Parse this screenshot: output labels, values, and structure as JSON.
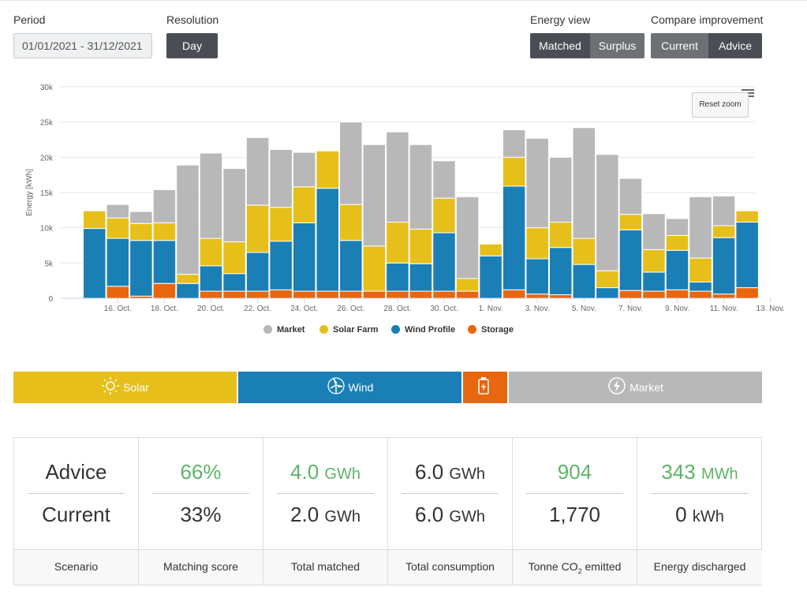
{
  "controls": {
    "period_label": "Period",
    "period_value": "01/01/2021 - 31/12/2021",
    "resolution_label": "Resolution",
    "resolution_value": "Day",
    "energy_view_label": "Energy view",
    "energy_view_options": [
      "Matched",
      "Surplus"
    ],
    "compare_label": "Compare improvement",
    "compare_options": [
      "Current",
      "Advice"
    ]
  },
  "chart": {
    "reset_zoom": "Reset zoom"
  },
  "chart_data": {
    "type": "bar",
    "stacked": true,
    "ylabel": "Energy [kWh]",
    "ylim": [
      0,
      30000
    ],
    "yticks": [
      "0",
      "5k",
      "10k",
      "15k",
      "20k",
      "25k",
      "30k"
    ],
    "xticks": [
      "16. Oct.",
      "18. Oct.",
      "20. Oct.",
      "22. Oct.",
      "24. Oct.",
      "26. Oct.",
      "28. Oct.",
      "30. Oct.",
      "1. Nov.",
      "3. Nov.",
      "5. Nov.",
      "7. Nov.",
      "9. Nov.",
      "11. Nov.",
      "13. Nov."
    ],
    "categories": [
      "15. Oct.",
      "16. Oct.",
      "17. Oct.",
      "18. Oct.",
      "19. Oct.",
      "20. Oct.",
      "21. Oct.",
      "22. Oct.",
      "23. Oct.",
      "24. Oct.",
      "25. Oct.",
      "26. Oct.",
      "27. Oct.",
      "28. Oct.",
      "29. Oct.",
      "30. Oct.",
      "31. Oct.",
      "1. Nov.",
      "2. Nov.",
      "3. Nov.",
      "4. Nov.",
      "5. Nov.",
      "6. Nov.",
      "7. Nov.",
      "8. Nov.",
      "9. Nov.",
      "10. Nov.",
      "11. Nov.",
      "12. Nov."
    ],
    "series": [
      {
        "name": "Storage",
        "color": "#e8660e",
        "values": [
          0,
          1700,
          300,
          2100,
          0,
          1000,
          1000,
          1000,
          1200,
          1000,
          1000,
          1000,
          1000,
          1000,
          1000,
          1000,
          1000,
          0,
          1200,
          600,
          500,
          0,
          0,
          1100,
          1000,
          1200,
          1000,
          600,
          1500
        ]
      },
      {
        "name": "Wind Profile",
        "color": "#1a7fb5",
        "values": [
          9900,
          6800,
          7900,
          6100,
          2100,
          3600,
          2500,
          5500,
          6900,
          9700,
          14600,
          7200,
          0,
          4000,
          3900,
          8300,
          0,
          6000,
          14700,
          5000,
          6700,
          4800,
          1500,
          8600,
          2700,
          5600,
          1300,
          8000,
          9300
        ]
      },
      {
        "name": "Solar Farm",
        "color": "#e6bf1a",
        "values": [
          2500,
          2900,
          2400,
          2500,
          1300,
          3900,
          4500,
          6700,
          4800,
          5100,
          5300,
          5100,
          6400,
          5800,
          4900,
          4900,
          1800,
          1700,
          4100,
          4400,
          3600,
          3700,
          2400,
          2200,
          3200,
          2100,
          3400,
          1700,
          1600
        ]
      },
      {
        "name": "Market",
        "color": "#b8b8b8",
        "values": [
          0,
          1900,
          1700,
          4700,
          15500,
          12100,
          10400,
          9600,
          8200,
          4900,
          0,
          11700,
          14400,
          12800,
          12000,
          5300,
          11600,
          0,
          3900,
          12700,
          9200,
          15700,
          16500,
          5100,
          5100,
          2400,
          8700,
          4200,
          0
        ]
      }
    ]
  },
  "tabs": {
    "solar": "Solar",
    "wind": "Wind",
    "market": "Market"
  },
  "scores": {
    "row1_label": "Advice",
    "row2_label": "Current",
    "columns": [
      {
        "advice": "66%",
        "advice_unit": "",
        "current": "33%",
        "current_unit": "",
        "footer": "Matching score"
      },
      {
        "advice": "4.0",
        "advice_unit": "GWh",
        "current": "2.0",
        "current_unit": "GWh",
        "footer": "Total matched"
      },
      {
        "advice": "6.0",
        "advice_unit": "GWh",
        "current": "6.0",
        "current_unit": "GWh",
        "footer": "Total consumption"
      },
      {
        "advice": "904",
        "advice_unit": "",
        "current": "1,770",
        "current_unit": "",
        "footer_pre": "Tonne CO",
        "footer_sub": "2",
        "footer_post": " emitted"
      },
      {
        "advice": "343",
        "advice_unit": "MWh",
        "current": "0",
        "current_unit": "kWh",
        "footer": "Energy discharged"
      }
    ],
    "scenario_label": "Scenario"
  }
}
